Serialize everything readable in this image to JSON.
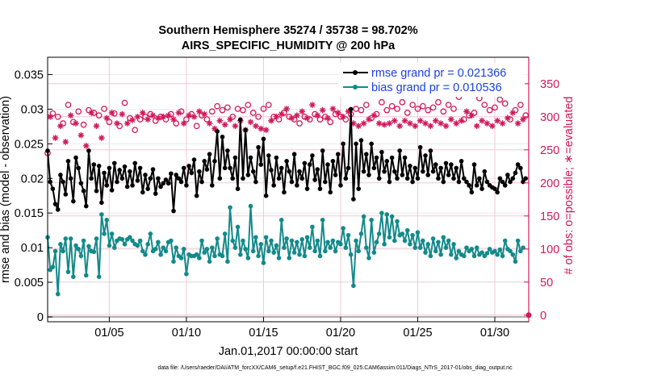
{
  "chart_data": {
    "type": "line",
    "title": "Southern Hemisphere 35274 / 35738 = 98.702%",
    "subtitle": "AIRS_SPECIFIC_HUMIDITY @ 200 hPa",
    "xlabel": "Jan.01,2017 00:00:00 start",
    "ylabel_left": "rmse and bias (model - observation)",
    "ylabel_right": "# of obs: o=possible; ∗=evaluated",
    "footnote": "data file: /Users/raeder/DAI/ATM_forcXX/CAM6_setup/f.e21.FHIST_BGC.f09_025.CAM6assim.011/Diags_NTrS_2017-01/obs_diag_output.nc",
    "x_range": [
      1,
      32.2
    ],
    "x_ticks": [
      5,
      10,
      15,
      20,
      25,
      30
    ],
    "x_tick_labels": [
      "01/05",
      "01/10",
      "01/15",
      "01/20",
      "01/25",
      "01/30"
    ],
    "y_left_range": [
      -0.0007,
      0.0375
    ],
    "y_left_ticks": [
      0,
      0.005,
      0.01,
      0.015,
      0.02,
      0.025,
      0.03,
      0.035
    ],
    "y_left_tick_labels": [
      "0",
      "0.005",
      "0.01",
      "0.015",
      "0.02",
      "0.025",
      "0.03",
      "0.035"
    ],
    "y_right_range": [
      -10,
      390
    ],
    "y_right_ticks": [
      0,
      50,
      100,
      150,
      200,
      250,
      300,
      350
    ],
    "y_right_tick_labels": [
      "0",
      "50",
      "100",
      "150",
      "200",
      "250",
      "300",
      "350"
    ],
    "grid": true,
    "legend_position": "top-right",
    "colors": {
      "rmse": "#000000",
      "bias": "#138a8a",
      "obs": "#d1195a",
      "grid": "#f2c7d6",
      "zero_line": "#b0b0b0"
    },
    "series": [
      {
        "name": "rmse grand pr = 0.021366",
        "axis": "left",
        "values": [
          0.024,
          0.0195,
          0.0185,
          0.0163,
          0.0155,
          0.0205,
          0.0195,
          0.0177,
          0.0225,
          0.02,
          0.0167,
          0.023,
          0.0215,
          0.0193,
          0.0182,
          0.016,
          0.024,
          0.02,
          0.022,
          0.0182,
          0.0218,
          0.0165,
          0.0208,
          0.019,
          0.0215,
          0.0183,
          0.0222,
          0.0195,
          0.0212,
          0.02,
          0.0217,
          0.0188,
          0.021,
          0.019,
          0.0222,
          0.0197,
          0.0215,
          0.018,
          0.0205,
          0.0185,
          0.02,
          0.0213,
          0.0178,
          0.02,
          0.0188,
          0.0193,
          0.0198,
          0.0193,
          0.0207,
          0.0153,
          0.0205,
          0.02,
          0.0195,
          0.0215,
          0.019,
          0.0218,
          0.0208,
          0.0227,
          0.0175,
          0.021,
          0.0195,
          0.0225,
          0.0213,
          0.0235,
          0.019,
          0.0225,
          0.0268,
          0.02,
          0.026,
          0.0215,
          0.024,
          0.0215,
          0.02,
          0.023,
          0.0185,
          0.0285,
          0.02,
          0.027,
          0.0205,
          0.023,
          0.021,
          0.0195,
          0.0245,
          0.022,
          0.0257,
          0.0175,
          0.0233,
          0.0212,
          0.019,
          0.023,
          0.02,
          0.0215,
          0.018,
          0.0225,
          0.021,
          0.0195,
          0.0235,
          0.019,
          0.021,
          0.02,
          0.0222,
          0.0185,
          0.022,
          0.0233,
          0.0198,
          0.0213,
          0.0185,
          0.024,
          0.0195,
          0.022,
          0.018,
          0.0225,
          0.0205,
          0.0235,
          0.019,
          0.025,
          0.02,
          0.0215,
          0.03,
          0.017,
          0.025,
          0.0185,
          0.0255,
          0.021,
          0.0235,
          0.0205,
          0.025,
          0.0215,
          0.023,
          0.02,
          0.0238,
          0.021,
          0.0225,
          0.0195,
          0.023,
          0.021,
          0.02,
          0.024,
          0.0205,
          0.023,
          0.02,
          0.0218,
          0.0195,
          0.0215,
          0.02,
          0.0245,
          0.021,
          0.0233,
          0.0205,
          0.024,
          0.021,
          0.022,
          0.02,
          0.0215,
          0.0195,
          0.0222,
          0.0205,
          0.022,
          0.02,
          0.0215,
          0.0195,
          0.0225,
          0.02,
          0.0195,
          0.019,
          0.018,
          0.022,
          0.019,
          0.02,
          0.0185,
          0.021,
          0.0195,
          0.019,
          0.0187,
          0.0185,
          0.018,
          0.02,
          0.0195,
          0.019,
          0.0205,
          0.0195,
          0.02,
          0.0208,
          0.022,
          0.0215,
          0.0195,
          0.02
        ]
      },
      {
        "name": "bias grand pr = 0.010536",
        "axis": "left",
        "values": [
          0.0115,
          0.0068,
          0.0072,
          0.0095,
          0.0033,
          0.0105,
          0.0095,
          0.0113,
          0.0065,
          0.0113,
          0.0058,
          0.0103,
          0.0098,
          0.0088,
          0.011,
          0.006,
          0.0102,
          0.0095,
          0.0094,
          0.0113,
          0.0058,
          0.0148,
          0.012,
          0.014,
          0.0103,
          0.012,
          0.01,
          0.011,
          0.0113,
          0.0112,
          0.0105,
          0.0112,
          0.0115,
          0.011,
          0.0105,
          0.0103,
          0.011,
          0.0095,
          0.009,
          0.0105,
          0.012,
          0.0095,
          0.0098,
          0.0108,
          0.009,
          0.01,
          0.0095,
          0.0108,
          0.011,
          0.008,
          0.01,
          0.0088,
          0.0085,
          0.0098,
          0.0062,
          0.009,
          0.0088,
          0.0088,
          0.009,
          0.0085,
          0.011,
          0.0093,
          0.0098,
          0.008,
          0.01,
          0.0088,
          0.0113,
          0.009,
          0.0088,
          0.012,
          0.008,
          0.0158,
          0.011,
          0.01,
          0.013,
          0.009,
          0.011,
          0.0098,
          0.0085,
          0.016,
          0.0095,
          0.0115,
          0.0088,
          0.0105,
          0.0078,
          0.0115,
          0.0095,
          0.011,
          0.0093,
          0.0103,
          0.0085,
          0.014,
          0.01,
          0.0113,
          0.0085,
          0.011,
          0.0093,
          0.0108,
          0.009,
          0.0112,
          0.0088,
          0.0115,
          0.01,
          0.013,
          0.0095,
          0.011,
          0.0088,
          0.014,
          0.0095,
          0.0108,
          0.01,
          0.011,
          0.0095,
          0.0108,
          0.0105,
          0.0128,
          0.01,
          0.0118,
          0.009,
          0.0045,
          0.011,
          0.0095,
          0.012,
          0.0145,
          0.01,
          0.0085,
          0.014,
          0.0093,
          0.0108,
          0.012,
          0.015,
          0.0105,
          0.0148,
          0.0115,
          0.0145,
          0.011,
          0.0138,
          0.0118,
          0.012,
          0.011,
          0.0125,
          0.0105,
          0.0118,
          0.01,
          0.0122,
          0.01,
          0.011,
          0.0093,
          0.0105,
          0.0088,
          0.0113,
          0.0095,
          0.0108,
          0.009,
          0.0115,
          0.01,
          0.011,
          0.009,
          0.0105,
          0.0085,
          0.0095,
          0.009,
          0.0088,
          0.01,
          0.0095,
          0.0098,
          0.0088,
          0.01,
          0.009,
          0.0093,
          0.0088,
          0.0092,
          0.0098,
          0.0093,
          0.0095,
          0.009,
          0.0097,
          0.0088,
          0.011,
          0.0098,
          0.0095,
          0.009,
          0.008,
          0.011,
          0.0095,
          0.01
        ]
      },
      {
        "name": "obs possible",
        "axis": "right",
        "marker": "o",
        "values": [
          245,
          310,
          305,
          278,
          300,
          296,
          290,
          274,
          318,
          312,
          292,
          300,
          308,
          282,
          288,
          268,
          310,
          314,
          306,
          296,
          302,
          280,
          312,
          308,
          292,
          316,
          305,
          300,
          286,
          314,
          321,
          300,
          298,
          305,
          280,
          310,
          296,
          316,
          300,
          306,
          304,
          312,
          294,
          308,
          300,
          310,
          296,
          312,
          304,
          306,
          290,
          316,
          308,
          300,
          296,
          312,
          304,
          310,
          286,
          318,
          302,
          314,
          296,
          300,
          308,
          292,
          316,
          304,
          310,
          298,
          314,
          306,
          300,
          296,
          312,
          304,
          310,
          290,
          318,
          302,
          306,
          296,
          300,
          292,
          312,
          290,
          318,
          304,
          300,
          310,
          296,
          314,
          306,
          322,
          300,
          308,
          296,
          312,
          290,
          318,
          300,
          308,
          296,
          328,
          304,
          312,
          296,
          320,
          300,
          308,
          292,
          322,
          304,
          316,
          300,
          310,
          296,
          318,
          304,
          300,
          312,
          296,
          310,
          300,
          318,
          306,
          298,
          312,
          304,
          300,
          322,
          298,
          310,
          300,
          316,
          304,
          312,
          296,
          322,
          304,
          306,
          300,
          318,
          296,
          312,
          304,
          316,
          300,
          310,
          296,
          314,
          304,
          322,
          300,
          308,
          296,
          318,
          306,
          312,
          300,
          330,
          304,
          296,
          318,
          302,
          312,
          306,
          296,
          328,
          304,
          318,
          300,
          310,
          296,
          314,
          304,
          326,
          300,
          320,
          308,
          296,
          316,
          310,
          300,
          318,
          306,
          302
        ]
      },
      {
        "name": "obs evaluated",
        "axis": "right",
        "marker": "*",
        "values": [
          244,
          300,
          296,
          268,
          292,
          286,
          280,
          262,
          308,
          302,
          282,
          290,
          298,
          272,
          278,
          256,
          300,
          306,
          296,
          286,
          292,
          268,
          302,
          298,
          282,
          306,
          295,
          290,
          276,
          304,
          312,
          290,
          288,
          295,
          268,
          300,
          286,
          306,
          290,
          296,
          294,
          302,
          284,
          298,
          290,
          300,
          286,
          302,
          294,
          296,
          280,
          306,
          298,
          290,
          286,
          302,
          294,
          300,
          276,
          308,
          292,
          304,
          286,
          290,
          298,
          282,
          306,
          294,
          300,
          288,
          304,
          296,
          290,
          286,
          302,
          294,
          300,
          280,
          308,
          292,
          296,
          286,
          290,
          282,
          302,
          280,
          308,
          294,
          290,
          300,
          286,
          304,
          296,
          312,
          290,
          298,
          286,
          302,
          280,
          308,
          290,
          298,
          286,
          318,
          294,
          302,
          286,
          310,
          290,
          298,
          282,
          312,
          294,
          306,
          290,
          300,
          286,
          308,
          294,
          290,
          302,
          286,
          300,
          290,
          308,
          296,
          288,
          302,
          294,
          290,
          312,
          288,
          300,
          290,
          306,
          294,
          302,
          286,
          312,
          294,
          296,
          290,
          308,
          286,
          302,
          294,
          306,
          290,
          300,
          286,
          304,
          294,
          312,
          290,
          298,
          286,
          308,
          296,
          302,
          290,
          320,
          294,
          286,
          308,
          292,
          302,
          296,
          286,
          318,
          294,
          308,
          290,
          300,
          286,
          304,
          294,
          316,
          290,
          310,
          298,
          286,
          306,
          300,
          290,
          308,
          296,
          292
        ]
      }
    ],
    "end_markers": {
      "right_axis_value": 0
    }
  }
}
